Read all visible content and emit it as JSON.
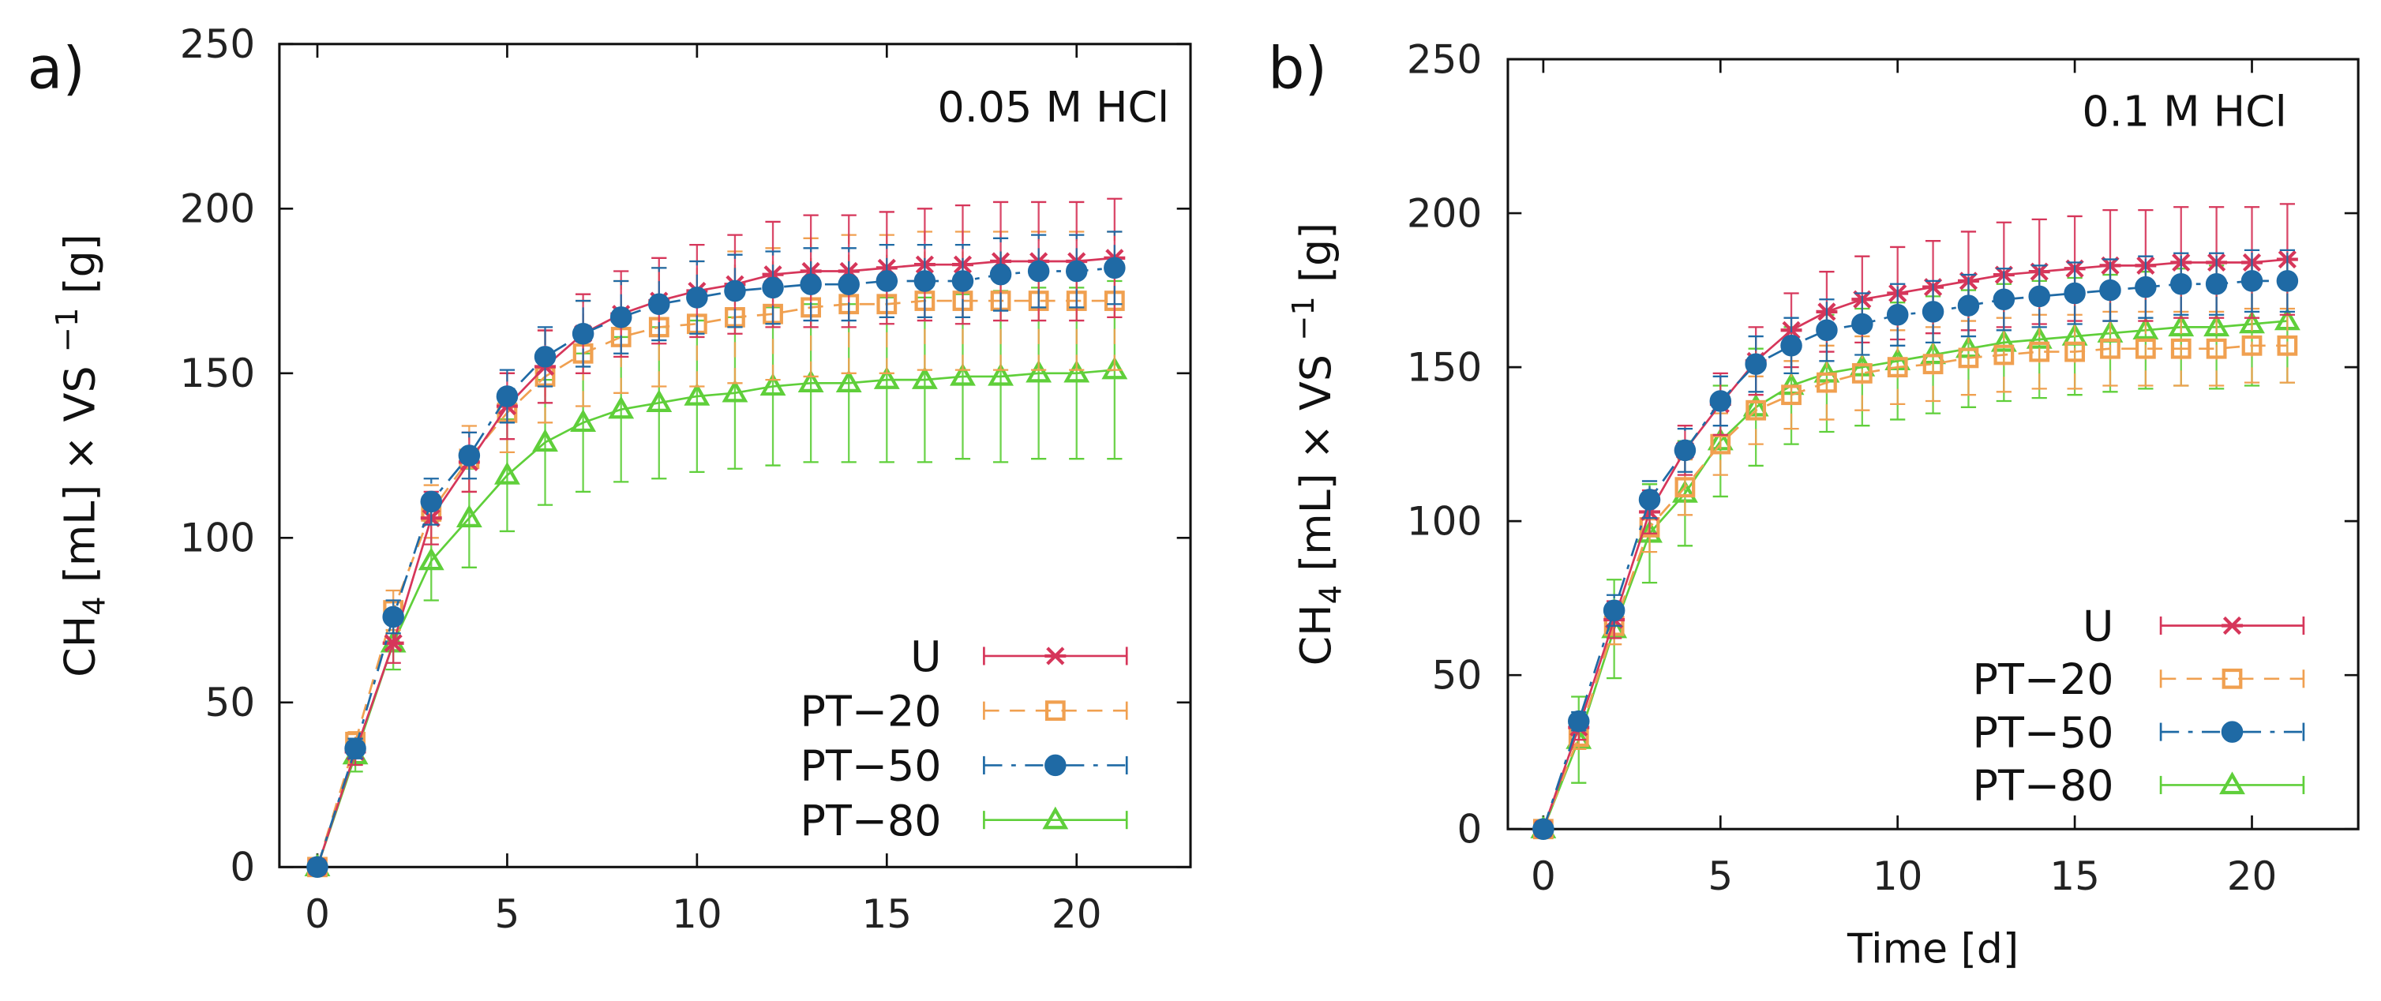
{
  "figure": {
    "x_label": "Time [d]",
    "y_label": {
      "prefix": "CH",
      "sub": "4",
      "middle": " [mL]  × VS ",
      "sup": "−1",
      "suffix": " [g]"
    }
  },
  "series_style": {
    "U": {
      "color": "#d6365a",
      "marker": "star",
      "dash": "solid"
    },
    "PT-20": {
      "color": "#f0a050",
      "marker": "square",
      "dash": "dash"
    },
    "PT-50": {
      "color": "#1f6aa5",
      "marker": "circle",
      "dash": "dashdot"
    },
    "PT-80": {
      "color": "#5fcf3a",
      "marker": "triangle",
      "dash": "solid"
    }
  },
  "chart_data": [
    {
      "type": "line",
      "panel_label": "a)",
      "annotation": "0.05 M HCl",
      "xlim": [
        -1.0,
        23.0
      ],
      "ylim": [
        0,
        250
      ],
      "x_ticks": [
        0,
        5,
        10,
        15,
        20
      ],
      "y_ticks": [
        0,
        50,
        100,
        150,
        200,
        250
      ],
      "legend_position": "bottom-right",
      "x": [
        0,
        1,
        2,
        3,
        4,
        5,
        6,
        7,
        8,
        9,
        10,
        11,
        12,
        13,
        14,
        15,
        16,
        17,
        18,
        19,
        20,
        21
      ],
      "series": [
        {
          "name": "U",
          "legend": "U",
          "values": [
            0,
            35,
            68,
            106,
            123,
            140,
            152,
            162,
            168,
            172,
            175,
            177,
            180,
            181,
            181,
            182,
            183,
            183,
            184,
            184,
            184,
            185
          ],
          "errors": [
            2,
            4,
            6,
            8,
            9,
            10,
            11,
            12,
            13,
            13,
            14,
            15,
            16,
            17,
            17,
            17,
            17,
            18,
            18,
            18,
            18,
            18
          ]
        },
        {
          "name": "PT-20",
          "legend": "PT−20",
          "values": [
            0,
            38,
            78,
            108,
            124,
            138,
            149,
            156,
            161,
            164,
            165,
            167,
            168,
            170,
            171,
            171,
            172,
            172,
            172,
            172,
            172,
            172
          ],
          "errors": [
            2,
            3,
            6,
            8,
            10,
            12,
            14,
            16,
            17,
            18,
            19,
            20,
            20,
            21,
            21,
            21,
            21,
            21,
            21,
            21,
            21,
            21
          ]
        },
        {
          "name": "PT-50",
          "legend": "PT−50",
          "values": [
            0,
            36,
            76,
            111,
            125,
            143,
            155,
            162,
            167,
            171,
            173,
            175,
            176,
            177,
            177,
            178,
            178,
            178,
            180,
            181,
            181,
            182
          ],
          "errors": [
            2,
            3,
            5,
            7,
            7,
            8,
            9,
            10,
            11,
            11,
            11,
            11,
            11,
            11,
            11,
            11,
            11,
            11,
            11,
            11,
            11,
            11
          ]
        },
        {
          "name": "PT-80",
          "legend": "PT−80",
          "values": [
            0,
            34,
            68,
            93,
            106,
            119,
            129,
            135,
            139,
            141,
            143,
            144,
            146,
            147,
            147,
            148,
            148,
            149,
            149,
            150,
            150,
            151
          ],
          "errors": [
            2,
            5,
            8,
            12,
            15,
            17,
            19,
            21,
            22,
            23,
            23,
            23,
            24,
            24,
            24,
            25,
            25,
            25,
            26,
            26,
            26,
            27
          ]
        }
      ]
    },
    {
      "type": "line",
      "panel_label": "b)",
      "annotation": "0.1 M HCl",
      "xlabel": "Time [d]",
      "xlim": [
        -1.0,
        23.0
      ],
      "ylim": [
        0,
        250
      ],
      "x_ticks": [
        0,
        5,
        10,
        15,
        20
      ],
      "y_ticks": [
        0,
        50,
        100,
        150,
        200,
        250
      ],
      "legend_position": "bottom-right",
      "x": [
        0,
        1,
        2,
        3,
        4,
        5,
        6,
        7,
        8,
        9,
        10,
        11,
        12,
        13,
        14,
        15,
        16,
        17,
        18,
        19,
        20,
        21
      ],
      "series": [
        {
          "name": "U",
          "legend": "U",
          "values": [
            0,
            33,
            68,
            103,
            123,
            138,
            152,
            162,
            168,
            172,
            174,
            176,
            178,
            180,
            181,
            182,
            183,
            183,
            184,
            184,
            184,
            185
          ],
          "errors": [
            2,
            4,
            6,
            7,
            8,
            10,
            11,
            12,
            13,
            14,
            15,
            15,
            16,
            17,
            17,
            17,
            18,
            18,
            18,
            18,
            18,
            18
          ]
        },
        {
          "name": "PT-20",
          "legend": "PT−20",
          "values": [
            0,
            30,
            66,
            98,
            111,
            125,
            136,
            141,
            145,
            148,
            150,
            151,
            153,
            154,
            155,
            155,
            156,
            156,
            156,
            156,
            157,
            157
          ],
          "errors": [
            2,
            4,
            6,
            8,
            9,
            10,
            11,
            11,
            12,
            12,
            12,
            12,
            12,
            12,
            12,
            12,
            12,
            12,
            12,
            12,
            12,
            12
          ]
        },
        {
          "name": "PT-50",
          "legend": "PT−50",
          "values": [
            0,
            35,
            71,
            107,
            123,
            139,
            151,
            157,
            162,
            164,
            167,
            168,
            170,
            172,
            173,
            174,
            175,
            176,
            177,
            177,
            178,
            178
          ],
          "errors": [
            2,
            3,
            5,
            6,
            7,
            8,
            9,
            9,
            10,
            10,
            10,
            10,
            10,
            10,
            10,
            10,
            10,
            10,
            10,
            10,
            10,
            10
          ]
        },
        {
          "name": "PT-80",
          "legend": "PT−80",
          "values": [
            0,
            29,
            65,
            96,
            109,
            126,
            137,
            144,
            148,
            150,
            152,
            154,
            156,
            158,
            159,
            160,
            161,
            162,
            163,
            163,
            164,
            165
          ],
          "errors": [
            2,
            14,
            16,
            16,
            17,
            18,
            19,
            19,
            19,
            19,
            19,
            19,
            19,
            19,
            19,
            19,
            19,
            19,
            19,
            20,
            20,
            20
          ]
        }
      ]
    }
  ]
}
